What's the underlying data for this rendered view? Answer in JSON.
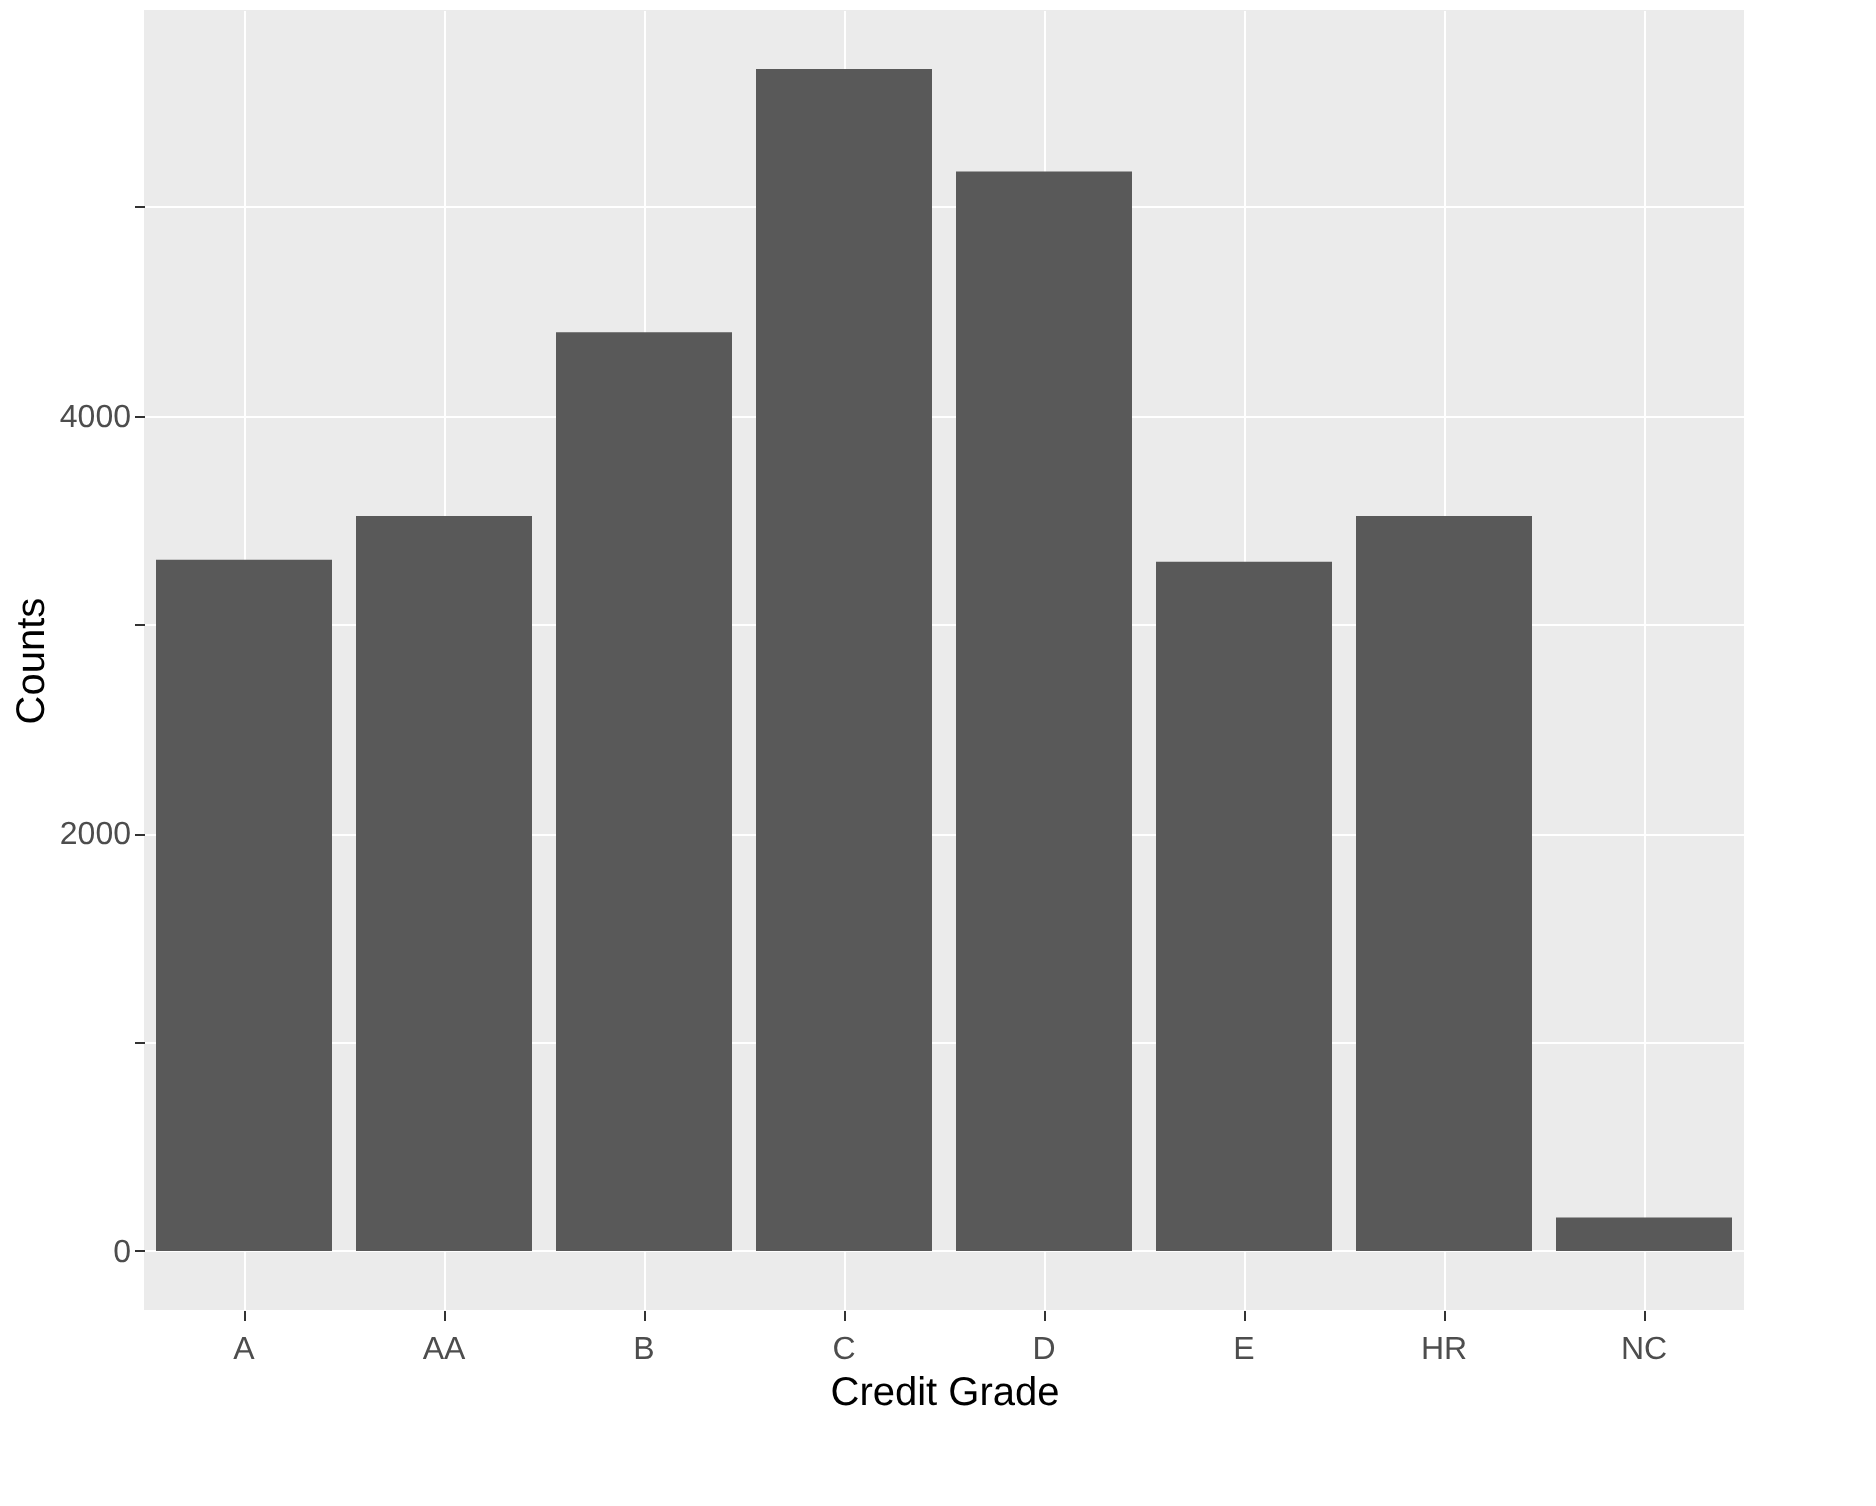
{
  "chart_data": {
    "type": "bar",
    "xlabel": "Credit Grade",
    "ylabel": "Counts",
    "categories": [
      "A",
      "AA",
      "B",
      "C",
      "D",
      "E",
      "HR",
      "NC"
    ],
    "values": [
      3310,
      3520,
      4400,
      5660,
      5170,
      3300,
      3520,
      160
    ],
    "color": "#595959",
    "ylim": [
      -283,
      5943
    ],
    "yticks": [
      0,
      {
        "value": 1000,
        "label": null
      },
      2000,
      {
        "value": 3000,
        "label": null
      },
      4000,
      {
        "value": 5000,
        "label": null
      }
    ],
    "grid": true
  }
}
